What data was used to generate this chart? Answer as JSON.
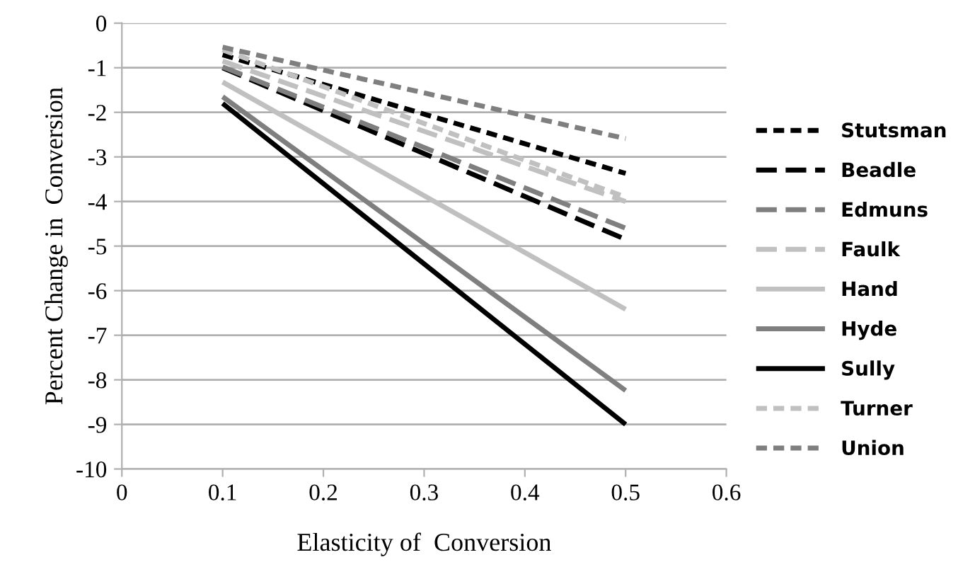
{
  "chart_data": {
    "type": "line",
    "xlabel": "Elasticity of  Conversion",
    "ylabel": "Percent Change in  Conversion",
    "xlim": [
      0,
      0.6
    ],
    "xticks": [
      0,
      0.1,
      0.2,
      0.3,
      0.4,
      0.5,
      0.6
    ],
    "ylim": [
      -10,
      0
    ],
    "yticks": [
      -10,
      -9,
      -8,
      -7,
      -6,
      -5,
      -4,
      -3,
      -2,
      -1,
      0
    ],
    "grid": "y",
    "legend": "right",
    "marker": "none",
    "x": [
      0.1,
      0.5
    ],
    "series": [
      {
        "name": "Stutsman",
        "color": "#000000",
        "line_style": "dotted",
        "values": [
          -0.71,
          -3.37
        ]
      },
      {
        "name": "Beadle",
        "color": "#000000",
        "line_style": "dashed",
        "values": [
          -1.0,
          -4.85
        ]
      },
      {
        "name": "Edmuns",
        "color": "#7f7f7f",
        "line_style": "dashed",
        "values": [
          -0.98,
          -4.6
        ]
      },
      {
        "name": "Faulk",
        "color": "#c0c0c0",
        "line_style": "dashed",
        "values": [
          -0.85,
          -4.0
        ]
      },
      {
        "name": "Hand",
        "color": "#c0c0c0",
        "line_style": "solid",
        "values": [
          -1.32,
          -6.42
        ]
      },
      {
        "name": "Hyde",
        "color": "#7f7f7f",
        "line_style": "solid",
        "values": [
          -1.65,
          -8.24
        ]
      },
      {
        "name": "Sully",
        "color": "#000000",
        "line_style": "solid",
        "values": [
          -1.8,
          -9.0
        ]
      },
      {
        "name": "Turner",
        "color": "#c0c0c0",
        "line_style": "dotted",
        "values": [
          -0.6,
          -3.9
        ]
      },
      {
        "name": "Union",
        "color": "#7f7f7f",
        "line_style": "dotted",
        "values": [
          -0.54,
          -2.59
        ]
      }
    ]
  }
}
